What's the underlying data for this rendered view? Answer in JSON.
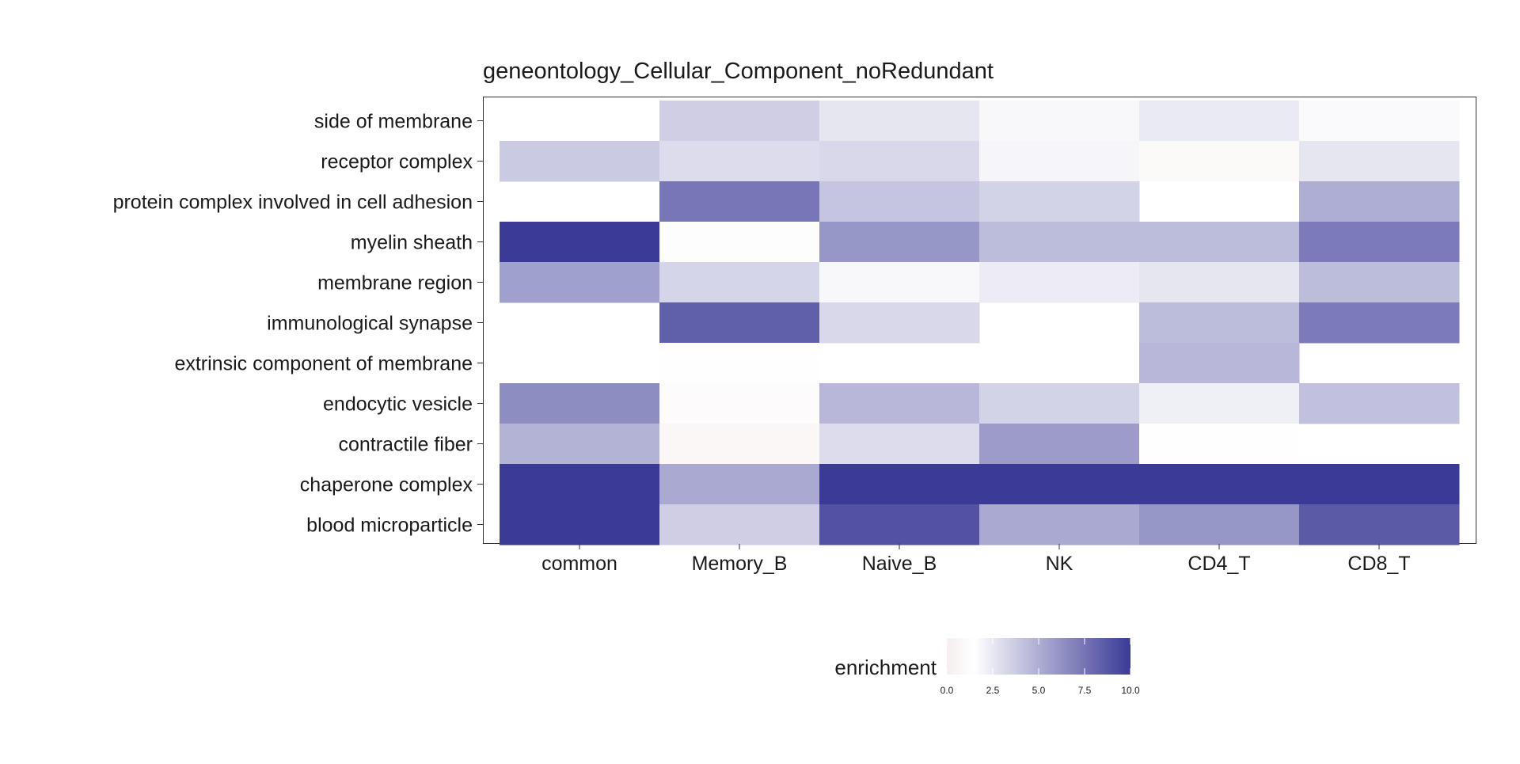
{
  "chart_data": {
    "type": "heatmap",
    "title": "geneontology_Cellular_Component_noRedundant",
    "xlabel": "",
    "ylabel": "",
    "x_categories": [
      "common",
      "Memory_B",
      "Naive_B",
      "NK",
      "CD4_T",
      "CD8_T"
    ],
    "y_categories": [
      "side of membrane",
      "receptor complex",
      "protein complex involved in cell adhesion",
      "myelin sheath",
      "membrane region",
      "immunological synapse",
      "extrinsic component of membrane",
      "endocytic vesicle",
      "contractile fiber",
      "chaperone complex",
      "blood microparticle"
    ],
    "values": [
      [
        null,
        3.6,
        2.6,
        1.8,
        2.4,
        1.7
      ],
      [
        3.8,
        3.0,
        3.2,
        1.9,
        1.0,
        2.6
      ],
      [
        null,
        7.4,
        4.0,
        3.4,
        null,
        5.0
      ],
      [
        10.0,
        1.6,
        6.0,
        4.4,
        4.4,
        7.2
      ],
      [
        5.6,
        3.3,
        1.8,
        2.3,
        2.6,
        4.4
      ],
      [
        null,
        8.4,
        3.2,
        null,
        4.4,
        7.2
      ],
      [
        null,
        1.4,
        null,
        null,
        4.6,
        null
      ],
      [
        6.4,
        1.2,
        4.6,
        3.4,
        2.2,
        4.2
      ],
      [
        4.8,
        0.8,
        3.0,
        5.8,
        1.4,
        null
      ],
      [
        10.0,
        5.2,
        10.0,
        10.0,
        10.0,
        10.0
      ],
      [
        10.0,
        3.6,
        9.0,
        5.2,
        6.0,
        8.6
      ]
    ],
    "legend": {
      "title": "enrichment",
      "position": "bottom",
      "range": [
        0,
        10
      ],
      "ticks": [
        "0.0",
        "2.5",
        "5.0",
        "7.5",
        "10.0"
      ],
      "colors": {
        "low": "#f7eded",
        "mid": "#ffffff",
        "mid_value": 1.5,
        "high": "#3b3a96"
      }
    },
    "grid": false
  }
}
